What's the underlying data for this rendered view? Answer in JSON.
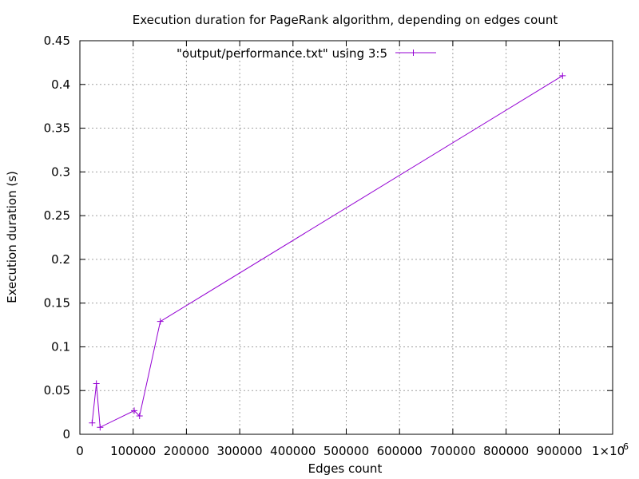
{
  "chart_data": {
    "type": "line",
    "title": "Execution duration for PageRank algorithm, depending on edges count",
    "xlabel": "Edges count",
    "ylabel": "Execution duration (s)",
    "xlim": [
      0,
      1000000
    ],
    "ylim": [
      0,
      0.45
    ],
    "x_ticks": [
      0,
      100000,
      200000,
      300000,
      400000,
      500000,
      600000,
      700000,
      800000,
      900000
    ],
    "x_tick_labels": [
      "0",
      "100000",
      "200000",
      "300000",
      "400000",
      "500000",
      "600000",
      "700000",
      "800000",
      "900000"
    ],
    "x_scale_label": "1×10",
    "x_scale_exponent": "6",
    "y_ticks": [
      0,
      0.05,
      0.1,
      0.15,
      0.2,
      0.25,
      0.3,
      0.35,
      0.4,
      0.45
    ],
    "y_tick_labels": [
      "0",
      "0.05",
      "0.1",
      "0.15",
      "0.2",
      "0.25",
      "0.3",
      "0.35",
      "0.4",
      "0.45"
    ],
    "grid": true,
    "legend_position": "top-right",
    "series": [
      {
        "name": "\"output/performance.txt\" using 3:5",
        "color": "#9400d3",
        "marker": "plus",
        "x": [
          23000,
          31000,
          38000,
          102000,
          112000,
          151000,
          906000
        ],
        "y": [
          0.013,
          0.058,
          0.008,
          0.027,
          0.021,
          0.129,
          0.41
        ]
      }
    ]
  }
}
